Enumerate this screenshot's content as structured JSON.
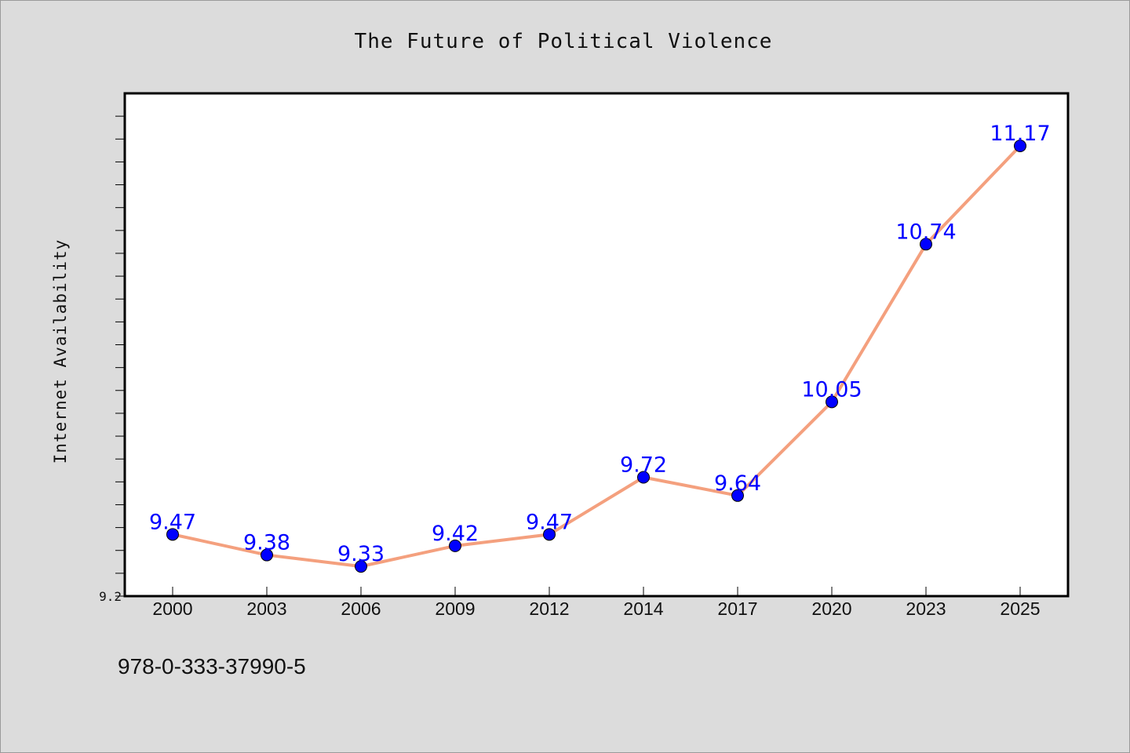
{
  "chart_data": {
    "type": "line",
    "title": "The Future of Political Violence",
    "ylabel": "Internet Availability",
    "xlabel": "",
    "categories": [
      "2000",
      "2003",
      "2006",
      "2009",
      "2012",
      "2014",
      "2017",
      "2020",
      "2023",
      "2025"
    ],
    "series": [
      {
        "values": [
          9.47,
          9.38,
          9.33,
          9.42,
          9.47,
          9.72,
          9.64,
          10.05,
          10.74,
          11.17
        ]
      }
    ],
    "data_labels": [
      "9.47",
      "9.38",
      "9.33",
      "9.42",
      "9.47",
      "9.72",
      "9.64",
      "10.05",
      "10.74",
      "11.17"
    ],
    "ylim": [
      9.2,
      11.4
    ],
    "y_tick_labels": [
      "9.2"
    ],
    "grid": false,
    "line_color": "#f4a07e",
    "marker_color": "#0000ff",
    "label_color": "#0000ff",
    "background_color": "#dcdcdc",
    "plot_background_color": "#ffffff"
  },
  "footer": {
    "isbn": "978-0-333-37990-5"
  }
}
